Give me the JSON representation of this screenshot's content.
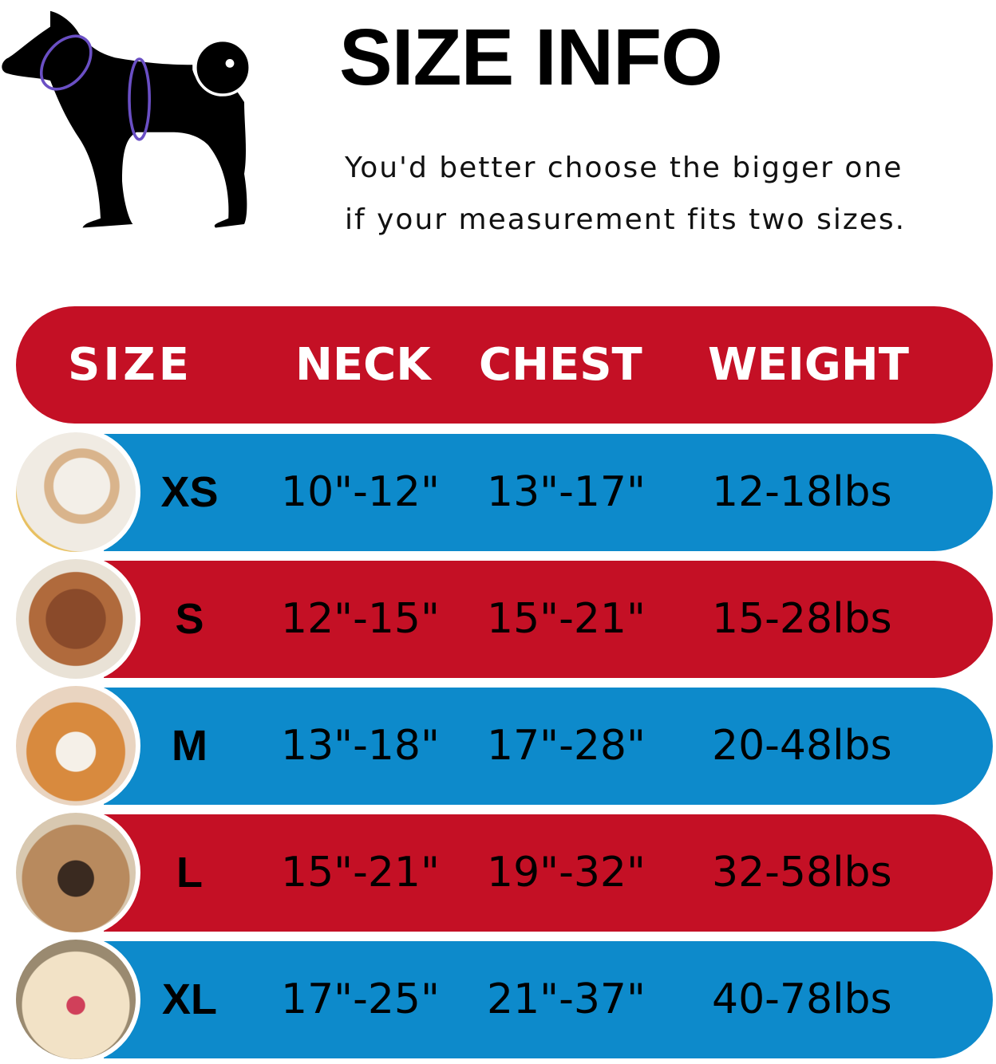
{
  "title": "SIZE INFO",
  "note_lines": [
    "You'd better choose the bigger one",
    "if your measurement fits two sizes."
  ],
  "colors": {
    "red": "#c41025",
    "blue": "#0d8acb",
    "ring": "#6a4fc4"
  },
  "table": {
    "headers": [
      "SIZE",
      "NECK",
      "CHEST",
      "WEIGHT"
    ],
    "rows": [
      {
        "size": "XS",
        "neck": "10\"-12\"",
        "chest": "13\"-17\"",
        "weight": "12-18lbs",
        "color": "blue",
        "photo": "pomeranian-photo"
      },
      {
        "size": "S",
        "neck": "12\"-15\"",
        "chest": "15\"-21\"",
        "weight": "15-28lbs",
        "color": "red",
        "photo": "poodle-photo"
      },
      {
        "size": "M",
        "neck": "13\"-18\"",
        "chest": "17\"-28\"",
        "weight": "20-48lbs",
        "color": "blue",
        "photo": "shiba-inu-photo"
      },
      {
        "size": "L",
        "neck": "15\"-21\"",
        "chest": "19\"-32\"",
        "weight": "32-58lbs",
        "color": "red",
        "photo": "french-bulldog-photo"
      },
      {
        "size": "XL",
        "neck": "17\"-25\"",
        "chest": "21\"-37\"",
        "weight": "40-78lbs",
        "color": "blue",
        "photo": "labrador-photo"
      }
    ]
  }
}
